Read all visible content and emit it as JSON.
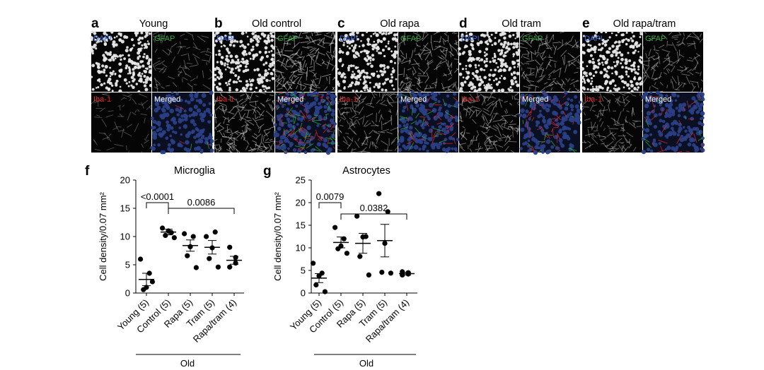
{
  "colors": {
    "dapi": "#3f6fe0",
    "gfap": "#2fae3a",
    "iba1": "#e0262b",
    "tile_black": "#050505",
    "merged_blue": "#2a3f86"
  },
  "panels": [
    {
      "letter": "a",
      "title": "Young",
      "gfap": 0.15,
      "iba": 0.12,
      "merged_red": 0.02,
      "merged_green": 0.01
    },
    {
      "letter": "b",
      "title": "Old control",
      "gfap": 0.55,
      "iba": 0.55,
      "merged_red": 0.35,
      "merged_green": 0.3
    },
    {
      "letter": "c",
      "title": "Old rapa",
      "gfap": 0.45,
      "iba": 0.4,
      "merged_red": 0.2,
      "merged_green": 0.15
    },
    {
      "letter": "d",
      "title": "Old tram",
      "gfap": 0.4,
      "iba": 0.45,
      "merged_red": 0.25,
      "merged_green": 0.1
    },
    {
      "letter": "e",
      "title": "Old rapa/tram",
      "gfap": 0.3,
      "iba": 0.35,
      "merged_red": 0.15,
      "merged_green": 0.05
    }
  ],
  "channel_labels": {
    "dapi": "DAPI",
    "gfap": "GFAP",
    "iba1": "Iba-1",
    "merged": "Merged"
  },
  "chart_data": [
    {
      "type": "scatter",
      "letter": "f",
      "title": "Microglia",
      "ylabel": "Cell density/0.07 mm²",
      "ylim": [
        0,
        20
      ],
      "yticks": [
        0,
        5,
        10,
        15,
        20
      ],
      "categories": [
        "Young (5)",
        "Control (5)",
        "Rapa (5)",
        "Tram (5)",
        "Rapa/tram (4)"
      ],
      "group_label": "Old",
      "means": [
        2.4,
        10.8,
        8.4,
        8.1,
        5.8
      ],
      "sems": [
        1.1,
        0.5,
        1.0,
        1.2,
        0.7
      ],
      "points": [
        [
          6.0,
          3.5,
          1.0,
          0.6,
          2.0
        ],
        [
          11.5,
          10.7,
          11.0,
          10.2,
          9.8
        ],
        [
          10.5,
          10.0,
          8.2,
          6.6,
          4.5
        ],
        [
          10.0,
          10.8,
          8.0,
          6.1,
          4.6
        ],
        [
          8.1,
          6.3,
          5.3,
          4.6
        ]
      ],
      "comparisons": [
        {
          "from": 0,
          "to": 1,
          "label": "<0.0001",
          "y": 16
        },
        {
          "from": 1,
          "to": 4,
          "label": "0.0086",
          "y": 15
        }
      ]
    },
    {
      "type": "scatter",
      "letter": "g",
      "title": "Astrocytes",
      "ylabel": "Cell density/0.07 mm²",
      "ylim": [
        0,
        25
      ],
      "yticks": [
        0,
        5,
        10,
        15,
        20,
        25
      ],
      "categories": [
        "Young (5)",
        "Control (5)",
        "Rapa (5)",
        "Tram (5)",
        "Rapa/tram (4)"
      ],
      "group_label": "Old",
      "means": [
        3.3,
        11.2,
        11.0,
        11.6,
        4.3
      ],
      "sems": [
        1.0,
        1.2,
        2.2,
        3.6,
        0.3
      ],
      "points": [
        [
          6.6,
          4.4,
          3.8,
          1.8,
          0.3
        ],
        [
          14.5,
          12.0,
          10.4,
          9.8,
          8.8
        ],
        [
          17.0,
          12.5,
          12.4,
          8.1,
          4.0
        ],
        [
          22.0,
          18.0,
          11.0,
          4.6,
          4.4
        ],
        [
          4.7,
          4.5,
          4.2,
          4.0
        ]
      ],
      "comparisons": [
        {
          "from": 0,
          "to": 1,
          "label": "0.0079",
          "y": 20
        },
        {
          "from": 1,
          "to": 4,
          "label": "0.0382",
          "y": 17.5
        }
      ]
    }
  ]
}
